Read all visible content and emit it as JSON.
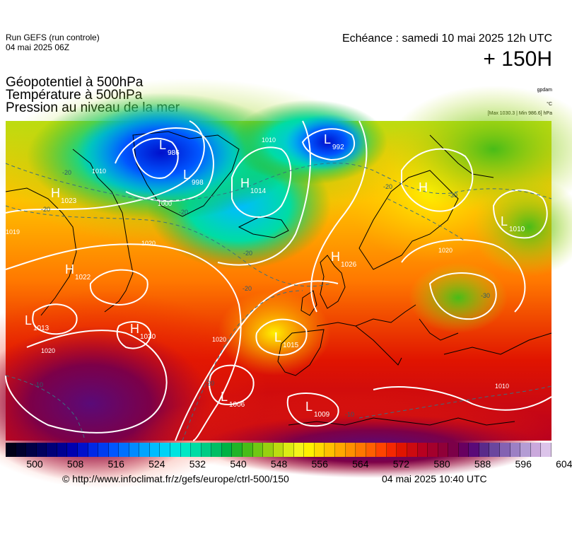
{
  "header": {
    "run": "Run GEFS (run controle)",
    "run_date": "04 mai 2025 06Z",
    "echeance": "Echéance : samedi 10 mai 2025 12h UTC",
    "lead": "+ 150H"
  },
  "params": {
    "line1": "Géopotentiel à 500hPa",
    "line2": "Température à 500hPa",
    "line3": "Pression au niveau de la mer"
  },
  "units": {
    "geopotential": "gpdam",
    "temperature": "°C",
    "pressure": "[Max 1030.3 | Min 986.6] hPa"
  },
  "colorbar": {
    "ticks": [
      "500",
      "508",
      "516",
      "524",
      "532",
      "540",
      "548",
      "556",
      "564",
      "572",
      "580",
      "588",
      "596",
      "604"
    ],
    "colors": [
      "#000018",
      "#00002e",
      "#000046",
      "#00005e",
      "#000078",
      "#000092",
      "#0000b0",
      "#0010cc",
      "#0028e6",
      "#003cf0",
      "#0056ff",
      "#0070ff",
      "#008aff",
      "#00a4ff",
      "#00bcff",
      "#00d2f6",
      "#00e4e0",
      "#00e8c4",
      "#00dca4",
      "#00cc84",
      "#00be64",
      "#00b244",
      "#20b428",
      "#48bc18",
      "#70c814",
      "#98d010",
      "#bcdc10",
      "#dcec14",
      "#f4f41a",
      "#fff000",
      "#ffd800",
      "#ffc000",
      "#ffa800",
      "#ff9000",
      "#ff7800",
      "#ff6000",
      "#ff4400",
      "#f42800",
      "#e01400",
      "#cc0a10",
      "#b80020",
      "#a4002c",
      "#900038",
      "#7c0048",
      "#680060",
      "#5a0a78",
      "#5a2a8a",
      "#6a469e",
      "#8462b2",
      "#9c80c4",
      "#b49cd4",
      "#caa8dc",
      "#dcc4ea"
    ]
  },
  "map": {
    "pressure_centers": [
      {
        "type": "L",
        "value": "986"
      },
      {
        "type": "L",
        "value": "992"
      },
      {
        "type": "L",
        "value": "998"
      },
      {
        "type": "H",
        "value": "1014"
      },
      {
        "type": "H",
        "value": "1023"
      },
      {
        "type": "H",
        "value": ""
      },
      {
        "type": "L",
        "value": "1010"
      },
      {
        "type": "H",
        "value": "1022"
      },
      {
        "type": "H",
        "value": "1026"
      },
      {
        "type": "L",
        "value": "1013"
      },
      {
        "type": "H",
        "value": "1030"
      },
      {
        "type": "L",
        "value": "1015"
      },
      {
        "type": "L",
        "value": "1006"
      },
      {
        "type": "L",
        "value": "1009"
      }
    ],
    "isobar_labels": [
      "1019",
      "1020",
      "1020",
      "1020",
      "1000",
      "1010",
      "1020",
      "1010",
      "1010"
    ],
    "isotherm_labels": [
      "-20",
      "-20",
      "-20",
      "-20",
      "-30",
      "-30",
      "-10",
      "-10",
      "-20",
      "-20",
      "-20"
    ]
  },
  "footer": {
    "url": "© http://www.infoclimat.fr/z/gefs/europe/ctrl-500/150",
    "generated": "04 mai 2025 10:40 UTC"
  }
}
